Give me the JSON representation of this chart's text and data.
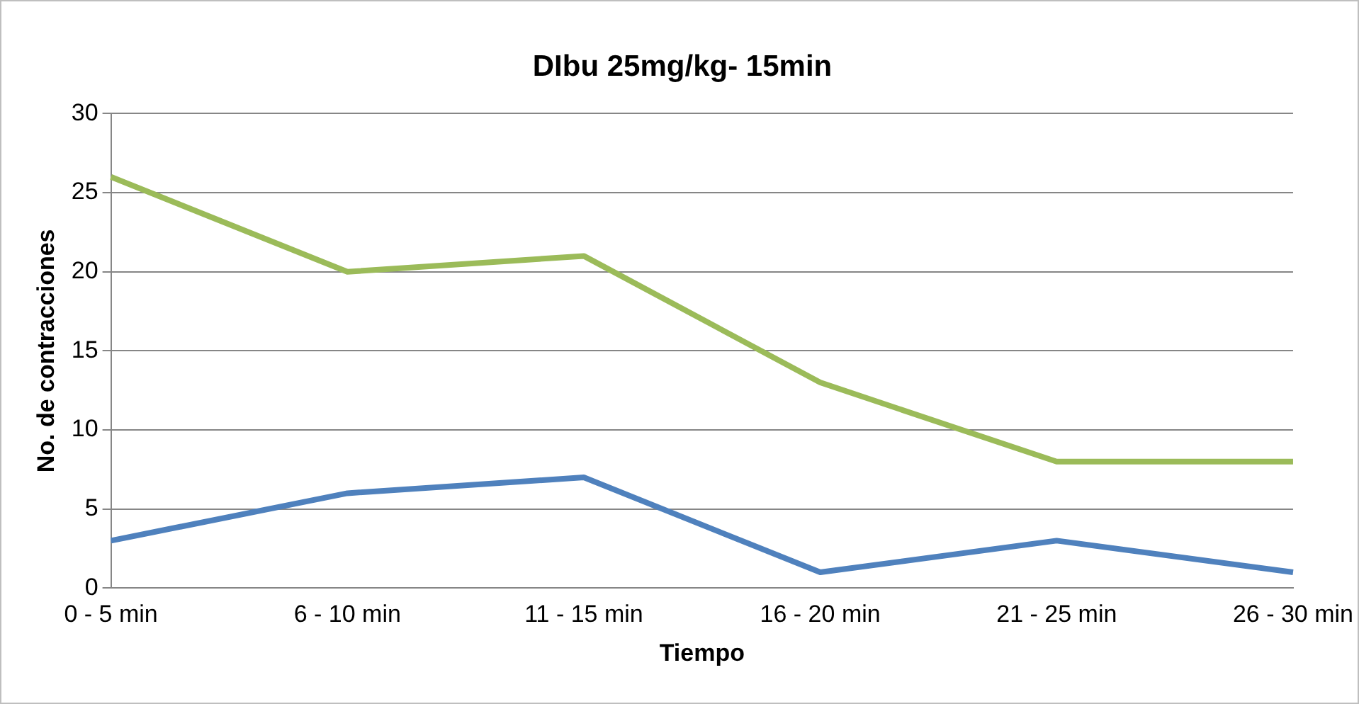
{
  "chart_data": {
    "type": "line",
    "title": "DIbu 25mg/kg- 15min",
    "xlabel": "Tiempo",
    "ylabel": "No. de contracciones",
    "categories": [
      "0 - 5 min",
      "6 - 10 min",
      "11 - 15 min",
      "16 - 20 min",
      "21 - 25 min",
      "26 - 30 min"
    ],
    "series": [
      {
        "color": "#4f81bd",
        "values": [
          3,
          6,
          7,
          1,
          3,
          1
        ]
      },
      {
        "color": "#9bbb59",
        "values": [
          26,
          20,
          21,
          13,
          8,
          8
        ]
      }
    ],
    "ylim": [
      0,
      30
    ],
    "yticks": [
      0,
      5,
      10,
      15,
      20,
      25,
      30
    ],
    "grid": "y",
    "legend": false,
    "marker": "none",
    "line_style": "solid"
  }
}
